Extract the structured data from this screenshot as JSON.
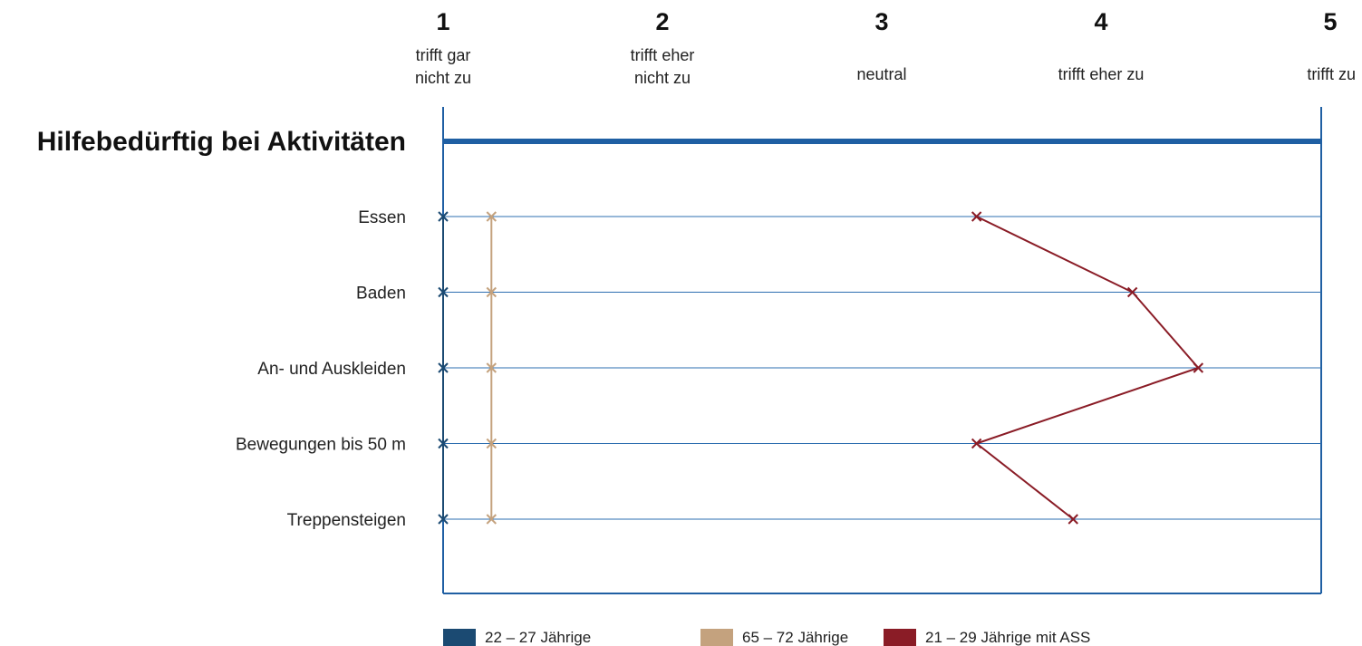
{
  "chart_data": {
    "type": "line",
    "title": "Hilfebedürftig bei Aktivitäten",
    "scale": [
      {
        "value": 1,
        "label": "trifft gar\nnicht zu"
      },
      {
        "value": 2,
        "label": "trifft eher\nnicht zu"
      },
      {
        "value": 3,
        "label": "neutral"
      },
      {
        "value": 4,
        "label": "trifft eher zu"
      },
      {
        "value": 5,
        "label": "trifft zu"
      }
    ],
    "categories": [
      "Essen",
      "Baden",
      "An- und Auskleiden",
      "Bewegungen bis 50 m",
      "Treppensteigen"
    ],
    "xlim": [
      1,
      5
    ],
    "orientation": "horizontal-scale, categories on vertical axis",
    "series": [
      {
        "name": "22 – 27 Jährige",
        "color": "#1b4a72",
        "values": [
          1.0,
          1.0,
          1.0,
          1.0,
          1.0
        ]
      },
      {
        "name": "65 – 72 Jährige",
        "color": "#c4a27e",
        "values": [
          1.22,
          1.22,
          1.22,
          1.22,
          1.22
        ]
      },
      {
        "name": "21 – 29 Jährige mit ASS",
        "color": "#8a1c26",
        "values": [
          3.43,
          4.14,
          4.44,
          3.43,
          3.87
        ]
      }
    ],
    "legend_position": "bottom",
    "grid": true
  },
  "colors": {
    "frame": "#1f5fa3",
    "gridline": "#2e6fb0"
  }
}
